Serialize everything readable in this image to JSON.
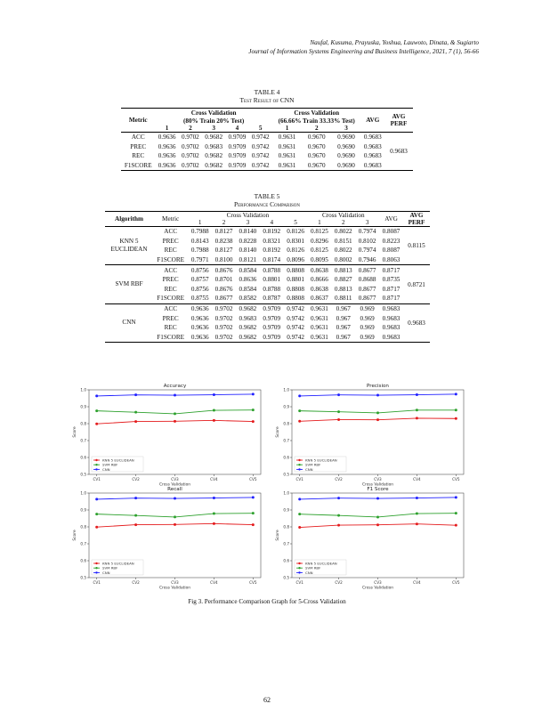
{
  "header": {
    "authors": "Naufal, Kusuma, Prayuska, Yoshua, Lauwoto, Dinata, & Sugiarto",
    "journal": "Journal of Information Systems Engineering and Business Intelligence, 2021, 7 (1), 56-66"
  },
  "table4": {
    "label": "TABLE 4",
    "title": "Test Result of CNN",
    "col_metric": "Metric",
    "group1": "Cross Validation",
    "group1_sub": "(80% Train 20% Test)",
    "group2": "Cross Validation",
    "group2_sub": "(66.66% Train 33.33% Test)",
    "col_avg": "AVG",
    "col_avgperf": "AVG PERF",
    "subcols": [
      "1",
      "2",
      "3",
      "4",
      "5",
      "1",
      "2",
      "3"
    ],
    "rows": [
      {
        "metric": "ACC",
        "values": [
          "0.9636",
          "0.9702",
          "0.9682",
          "0.9709",
          "0.9742",
          "0.9631",
          "0.9670",
          "0.9690"
        ],
        "avg": "0.9683"
      },
      {
        "metric": "PREC",
        "values": [
          "0.9636",
          "0.9702",
          "0.9683",
          "0.9709",
          "0.9742",
          "0.9631",
          "0.9670",
          "0.9690"
        ],
        "avg": "0.9683"
      },
      {
        "metric": "REC",
        "values": [
          "0.9636",
          "0.9702",
          "0.9682",
          "0.9709",
          "0.9742",
          "0.9631",
          "0.9670",
          "0.9690"
        ],
        "avg": "0.9683"
      },
      {
        "metric": "F1SCORE",
        "values": [
          "0.9636",
          "0.9702",
          "0.9682",
          "0.9709",
          "0.9742",
          "0.9631",
          "0.9670",
          "0.9690"
        ],
        "avg": "0.9683"
      }
    ],
    "avg_perf": "0.9683"
  },
  "table5": {
    "label": "TABLE 5",
    "title": "Performance Comparison",
    "col_algorithm": "Algorithm",
    "col_metric": "Metric",
    "group1": "Cross Validation",
    "group2": "Cross Validation",
    "col_avg": "AVG",
    "col_avgperf": "AVG PERF",
    "subcols": [
      "1",
      "2",
      "3",
      "4",
      "5",
      "1",
      "2",
      "3"
    ],
    "blocks": [
      {
        "algorithm": "KNN 5 EUCLIDEAN",
        "avg_perf": "0.8115",
        "rows": [
          {
            "metric": "ACC",
            "values": [
              "0.7988",
              "0.8127",
              "0.8140",
              "0.8192",
              "0.8126",
              "0.8125",
              "0.8022",
              "0.7974"
            ],
            "avg": "0.8087"
          },
          {
            "metric": "PREC",
            "values": [
              "0.8143",
              "0.8238",
              "0.8228",
              "0.8321",
              "0.8301",
              "0.8296",
              "0.8151",
              "0.8102"
            ],
            "avg": "0.8223"
          },
          {
            "metric": "REC",
            "values": [
              "0.7988",
              "0.8127",
              "0.8140",
              "0.8192",
              "0.8126",
              "0.8125",
              "0.8022",
              "0.7974"
            ],
            "avg": "0.8087"
          },
          {
            "metric": "F1SCORE",
            "values": [
              "0.7971",
              "0.8100",
              "0.8121",
              "0.8174",
              "0.8096",
              "0.8095",
              "0.8002",
              "0.7946"
            ],
            "avg": "0.8063"
          }
        ]
      },
      {
        "algorithm": "SVM RBF",
        "avg_perf": "0.8721",
        "rows": [
          {
            "metric": "ACC",
            "values": [
              "0.8756",
              "0.8676",
              "0.8584",
              "0.8788",
              "0.8808",
              "0.8638",
              "0.8813",
              "0.8677"
            ],
            "avg": "0.8717"
          },
          {
            "metric": "PREC",
            "values": [
              "0.8757",
              "0.8701",
              "0.8636",
              "0.8801",
              "0.8801",
              "0.8666",
              "0.8827",
              "0.8688"
            ],
            "avg": "0.8735"
          },
          {
            "metric": "REC",
            "values": [
              "0.8756",
              "0.8676",
              "0.8584",
              "0.8788",
              "0.8808",
              "0.8638",
              "0.8813",
              "0.8677"
            ],
            "avg": "0.8717"
          },
          {
            "metric": "F1SCORE",
            "values": [
              "0.8755",
              "0.8677",
              "0.8582",
              "0.8787",
              "0.8808",
              "0.8637",
              "0.8811",
              "0.8677"
            ],
            "avg": "0.8717"
          }
        ]
      },
      {
        "algorithm": "CNN",
        "avg_perf": "0.9683",
        "rows": [
          {
            "metric": "ACC",
            "values": [
              "0.9636",
              "0.9702",
              "0.9682",
              "0.9709",
              "0.9742",
              "0.9631",
              "0.967",
              "0.969"
            ],
            "avg": "0.9683"
          },
          {
            "metric": "PREC",
            "values": [
              "0.9636",
              "0.9702",
              "0.9683",
              "0.9709",
              "0.9742",
              "0.9631",
              "0.967",
              "0.969"
            ],
            "avg": "0.9683"
          },
          {
            "metric": "REC",
            "values": [
              "0.9636",
              "0.9702",
              "0.9682",
              "0.9709",
              "0.9742",
              "0.9631",
              "0.967",
              "0.969"
            ],
            "avg": "0.9683"
          },
          {
            "metric": "F1SCORE",
            "values": [
              "0.9636",
              "0.9702",
              "0.9682",
              "0.9709",
              "0.9742",
              "0.9631",
              "0.967",
              "0.969"
            ],
            "avg": "0.9683"
          }
        ]
      }
    ]
  },
  "figure": {
    "caption": "Fig 3. Performance Comparison Graph for 5-Cross Validation"
  },
  "chart_data": [
    {
      "type": "line",
      "title": "Accuracy",
      "xlabel": "Cross Validation",
      "ylabel": "Score",
      "ylim": [
        0.5,
        1.0
      ],
      "yticks": [
        "0.5",
        "0.6",
        "0.7",
        "0.8",
        "0.9",
        "1.0"
      ],
      "categories": [
        "CV1",
        "CV2",
        "CV3",
        "CV4",
        "CV5"
      ],
      "legend": "lower-left",
      "grid": false,
      "series": [
        {
          "name": "KNN 5 EUCLIDEAN",
          "color": "#e41a1c",
          "values": [
            0.7988,
            0.8127,
            0.814,
            0.8192,
            0.8126
          ]
        },
        {
          "name": "SVM RBF",
          "color": "#2ca02c",
          "values": [
            0.8756,
            0.8676,
            0.8584,
            0.8788,
            0.8808
          ]
        },
        {
          "name": "CNN",
          "color": "#1f1fff",
          "values": [
            0.9636,
            0.9702,
            0.9682,
            0.9709,
            0.9742
          ]
        }
      ]
    },
    {
      "type": "line",
      "title": "Precision",
      "xlabel": "Cross Validation",
      "ylabel": "Score",
      "ylim": [
        0.5,
        1.0
      ],
      "yticks": [
        "0.5",
        "0.6",
        "0.7",
        "0.8",
        "0.9",
        "1.0"
      ],
      "categories": [
        "CV1",
        "CV2",
        "CV3",
        "CV4",
        "CV5"
      ],
      "legend": "lower-left",
      "grid": false,
      "series": [
        {
          "name": "KNN 5 EUCLIDEAN",
          "color": "#e41a1c",
          "values": [
            0.8143,
            0.8238,
            0.8228,
            0.8321,
            0.8301
          ]
        },
        {
          "name": "SVM RBF",
          "color": "#2ca02c",
          "values": [
            0.8757,
            0.8701,
            0.8636,
            0.8801,
            0.8801
          ]
        },
        {
          "name": "CNN",
          "color": "#1f1fff",
          "values": [
            0.9636,
            0.9702,
            0.9683,
            0.9709,
            0.9742
          ]
        }
      ]
    },
    {
      "type": "line",
      "title": "Recall",
      "xlabel": "Cross Validation",
      "ylabel": "Score",
      "ylim": [
        0.5,
        1.0
      ],
      "yticks": [
        "0.5",
        "0.6",
        "0.7",
        "0.8",
        "0.9",
        "1.0"
      ],
      "categories": [
        "CV1",
        "CV2",
        "CV3",
        "CV4",
        "CV5"
      ],
      "legend": "lower-left",
      "grid": false,
      "series": [
        {
          "name": "KNN 5 EUCLIDEAN",
          "color": "#e41a1c",
          "values": [
            0.7988,
            0.8127,
            0.814,
            0.8192,
            0.8126
          ]
        },
        {
          "name": "SVM RBF",
          "color": "#2ca02c",
          "values": [
            0.8756,
            0.8676,
            0.8584,
            0.8788,
            0.8808
          ]
        },
        {
          "name": "CNN",
          "color": "#1f1fff",
          "values": [
            0.9636,
            0.9702,
            0.9682,
            0.9709,
            0.9742
          ]
        }
      ]
    },
    {
      "type": "line",
      "title": "F1 Score",
      "xlabel": "Cross Validation",
      "ylabel": "Score",
      "ylim": [
        0.5,
        1.0
      ],
      "yticks": [
        "0.5",
        "0.6",
        "0.7",
        "0.8",
        "0.9",
        "1.0"
      ],
      "categories": [
        "CV1",
        "CV2",
        "CV3",
        "CV4",
        "CV5"
      ],
      "legend": "lower-left",
      "grid": false,
      "series": [
        {
          "name": "KNN 5 EUCLIDEAN",
          "color": "#e41a1c",
          "values": [
            0.7971,
            0.81,
            0.8121,
            0.8174,
            0.8096
          ]
        },
        {
          "name": "SVM RBF",
          "color": "#2ca02c",
          "values": [
            0.8755,
            0.8677,
            0.8582,
            0.8787,
            0.8808
          ]
        },
        {
          "name": "CNN",
          "color": "#1f1fff",
          "values": [
            0.9636,
            0.9702,
            0.9682,
            0.9709,
            0.9742
          ]
        }
      ]
    }
  ],
  "page_number": "62"
}
